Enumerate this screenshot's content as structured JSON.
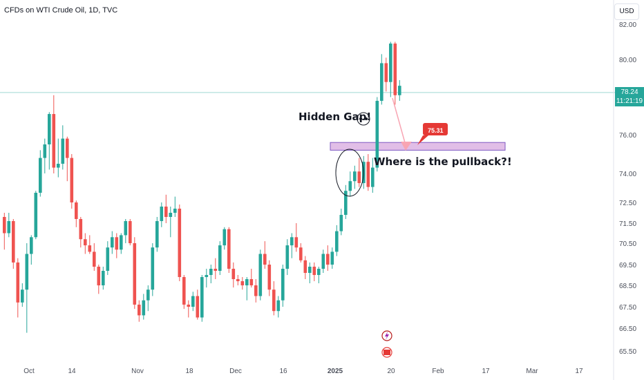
{
  "header": {
    "title": "CFDs on WTI Crude Oil, 1D, TVC",
    "currency": "USD"
  },
  "last_price": {
    "value": "78.24",
    "countdown": "11:21:19"
  },
  "annotations": {
    "hidden_gap": "Hidden Gap!",
    "pullback": "Where is the pullback?!",
    "target_badge": "75.31"
  },
  "colors": {
    "up": "#26a69a",
    "down": "#ef5350",
    "zone_fill": "#e1bee7",
    "zone_border": "#7e57c2",
    "arrow": "#f8a5b3",
    "badge": "#e53935",
    "price_line": "#26a69a"
  },
  "chart_data": {
    "type": "candlestick",
    "title": "CFDs on WTI Crude Oil, 1D, TVC",
    "xlabel": "",
    "ylabel": "",
    "y_ticks": [
      "82.00",
      "80.00",
      "76.00",
      "74.00",
      "72.50",
      "71.50",
      "70.50",
      "69.50",
      "68.50",
      "67.50",
      "66.50",
      "65.50"
    ],
    "x_ticks": [
      "Oct",
      "14",
      "Nov",
      "18",
      "Dec",
      "16",
      "2025",
      "20",
      "Feb",
      "17",
      "Mar",
      "17"
    ],
    "candles": [
      {
        "o": 71.8,
        "h": 72.0,
        "l": 70.2,
        "c": 71.0
      },
      {
        "o": 71.0,
        "h": 72.0,
        "l": 70.8,
        "c": 71.6
      },
      {
        "o": 71.6,
        "h": 71.7,
        "l": 69.3,
        "c": 69.6
      },
      {
        "o": 69.6,
        "h": 69.8,
        "l": 67.0,
        "c": 67.7
      },
      {
        "o": 67.7,
        "h": 68.6,
        "l": 67.5,
        "c": 68.3
      },
      {
        "o": 68.3,
        "h": 70.5,
        "l": 66.3,
        "c": 70.0
      },
      {
        "o": 70.0,
        "h": 70.9,
        "l": 69.5,
        "c": 70.8
      },
      {
        "o": 70.8,
        "h": 73.1,
        "l": 70.7,
        "c": 73.0
      },
      {
        "o": 73.0,
        "h": 75.2,
        "l": 72.8,
        "c": 74.8
      },
      {
        "o": 74.8,
        "h": 75.8,
        "l": 74.0,
        "c": 75.5
      },
      {
        "o": 75.5,
        "h": 77.2,
        "l": 74.2,
        "c": 77.1
      },
      {
        "o": 77.1,
        "h": 78.1,
        "l": 74.0,
        "c": 74.3
      },
      {
        "o": 74.3,
        "h": 75.8,
        "l": 73.8,
        "c": 74.5
      },
      {
        "o": 74.5,
        "h": 76.5,
        "l": 74.2,
        "c": 75.8
      },
      {
        "o": 75.8,
        "h": 75.9,
        "l": 73.6,
        "c": 74.8
      },
      {
        "o": 74.8,
        "h": 75.0,
        "l": 72.2,
        "c": 72.5
      },
      {
        "o": 72.5,
        "h": 72.6,
        "l": 71.3,
        "c": 71.7
      },
      {
        "o": 71.7,
        "h": 71.8,
        "l": 70.3,
        "c": 70.7
      },
      {
        "o": 70.7,
        "h": 71.0,
        "l": 70.0,
        "c": 70.4
      },
      {
        "o": 70.4,
        "h": 70.9,
        "l": 70.0,
        "c": 70.1
      },
      {
        "o": 70.1,
        "h": 70.5,
        "l": 69.2,
        "c": 69.4
      },
      {
        "o": 69.4,
        "h": 69.5,
        "l": 68.1,
        "c": 68.5
      },
      {
        "o": 68.5,
        "h": 69.4,
        "l": 68.3,
        "c": 69.2
      },
      {
        "o": 69.2,
        "h": 70.6,
        "l": 69.0,
        "c": 70.3
      },
      {
        "o": 70.3,
        "h": 71.1,
        "l": 70.0,
        "c": 70.8
      },
      {
        "o": 70.8,
        "h": 71.0,
        "l": 69.8,
        "c": 70.2
      },
      {
        "o": 70.2,
        "h": 71.0,
        "l": 70.0,
        "c": 70.9
      },
      {
        "o": 70.9,
        "h": 71.7,
        "l": 70.5,
        "c": 71.6
      },
      {
        "o": 71.6,
        "h": 71.7,
        "l": 70.4,
        "c": 70.5
      },
      {
        "o": 70.5,
        "h": 70.8,
        "l": 67.4,
        "c": 67.6
      },
      {
        "o": 67.6,
        "h": 67.8,
        "l": 66.8,
        "c": 67.1
      },
      {
        "o": 67.1,
        "h": 68.1,
        "l": 66.9,
        "c": 67.8
      },
      {
        "o": 67.8,
        "h": 68.5,
        "l": 67.3,
        "c": 68.3
      },
      {
        "o": 68.3,
        "h": 70.5,
        "l": 68.0,
        "c": 70.3
      },
      {
        "o": 70.3,
        "h": 71.8,
        "l": 70.1,
        "c": 71.6
      },
      {
        "o": 71.6,
        "h": 72.5,
        "l": 71.3,
        "c": 72.3
      },
      {
        "o": 72.3,
        "h": 72.9,
        "l": 71.5,
        "c": 71.8
      },
      {
        "o": 71.8,
        "h": 72.3,
        "l": 70.8,
        "c": 72.0
      },
      {
        "o": 72.0,
        "h": 72.8,
        "l": 71.8,
        "c": 72.2
      },
      {
        "o": 72.2,
        "h": 72.4,
        "l": 68.7,
        "c": 68.9
      },
      {
        "o": 68.9,
        "h": 69.0,
        "l": 67.4,
        "c": 67.6
      },
      {
        "o": 67.6,
        "h": 67.8,
        "l": 67.0,
        "c": 67.5
      },
      {
        "o": 67.5,
        "h": 68.2,
        "l": 67.3,
        "c": 68.0
      },
      {
        "o": 68.0,
        "h": 68.3,
        "l": 66.9,
        "c": 67.0
      },
      {
        "o": 67.0,
        "h": 69.0,
        "l": 66.8,
        "c": 68.9
      },
      {
        "o": 68.9,
        "h": 69.3,
        "l": 68.4,
        "c": 69.0
      },
      {
        "o": 69.0,
        "h": 69.5,
        "l": 68.6,
        "c": 69.3
      },
      {
        "o": 69.3,
        "h": 69.8,
        "l": 68.8,
        "c": 69.2
      },
      {
        "o": 69.2,
        "h": 70.6,
        "l": 69.0,
        "c": 70.4
      },
      {
        "o": 70.4,
        "h": 71.3,
        "l": 70.2,
        "c": 71.2
      },
      {
        "o": 71.2,
        "h": 71.3,
        "l": 69.1,
        "c": 69.3
      },
      {
        "o": 69.3,
        "h": 69.6,
        "l": 68.4,
        "c": 68.8
      },
      {
        "o": 68.8,
        "h": 69.0,
        "l": 68.5,
        "c": 68.7
      },
      {
        "o": 68.7,
        "h": 68.9,
        "l": 68.3,
        "c": 68.5
      },
      {
        "o": 68.5,
        "h": 68.9,
        "l": 67.8,
        "c": 68.8
      },
      {
        "o": 68.8,
        "h": 69.3,
        "l": 68.4,
        "c": 68.5
      },
      {
        "o": 68.5,
        "h": 68.8,
        "l": 67.7,
        "c": 68.0
      },
      {
        "o": 68.0,
        "h": 70.2,
        "l": 67.8,
        "c": 70.0
      },
      {
        "o": 70.0,
        "h": 70.6,
        "l": 69.3,
        "c": 69.5
      },
      {
        "o": 69.5,
        "h": 69.7,
        "l": 68.0,
        "c": 68.3
      },
      {
        "o": 68.3,
        "h": 68.7,
        "l": 67.1,
        "c": 67.3
      },
      {
        "o": 67.3,
        "h": 68.0,
        "l": 67.0,
        "c": 67.8
      },
      {
        "o": 67.8,
        "h": 69.5,
        "l": 67.5,
        "c": 69.3
      },
      {
        "o": 69.3,
        "h": 70.7,
        "l": 69.0,
        "c": 70.4
      },
      {
        "o": 70.4,
        "h": 71.0,
        "l": 69.8,
        "c": 70.8
      },
      {
        "o": 70.8,
        "h": 71.5,
        "l": 70.1,
        "c": 70.3
      },
      {
        "o": 70.3,
        "h": 70.5,
        "l": 69.6,
        "c": 69.7
      },
      {
        "o": 69.7,
        "h": 69.9,
        "l": 68.8,
        "c": 69.1
      },
      {
        "o": 69.1,
        "h": 69.6,
        "l": 68.6,
        "c": 69.4
      },
      {
        "o": 69.4,
        "h": 69.6,
        "l": 68.7,
        "c": 69.0
      },
      {
        "o": 69.0,
        "h": 69.4,
        "l": 68.6,
        "c": 69.3
      },
      {
        "o": 69.3,
        "h": 70.2,
        "l": 69.1,
        "c": 70.0
      },
      {
        "o": 70.0,
        "h": 70.4,
        "l": 69.2,
        "c": 69.5
      },
      {
        "o": 69.5,
        "h": 70.3,
        "l": 69.3,
        "c": 70.1
      },
      {
        "o": 70.1,
        "h": 71.4,
        "l": 69.9,
        "c": 71.1
      },
      {
        "o": 71.1,
        "h": 72.2,
        "l": 70.9,
        "c": 71.9
      },
      {
        "o": 71.9,
        "h": 73.4,
        "l": 71.7,
        "c": 73.1
      },
      {
        "o": 73.1,
        "h": 74.1,
        "l": 72.8,
        "c": 73.6
      },
      {
        "o": 73.6,
        "h": 74.4,
        "l": 73.2,
        "c": 74.1
      },
      {
        "o": 74.1,
        "h": 74.8,
        "l": 73.3,
        "c": 73.5
      },
      {
        "o": 73.5,
        "h": 74.9,
        "l": 73.2,
        "c": 74.6
      },
      {
        "o": 74.6,
        "h": 75.0,
        "l": 73.1,
        "c": 73.3
      },
      {
        "o": 73.3,
        "h": 74.8,
        "l": 73.0,
        "c": 74.3
      },
      {
        "o": 74.3,
        "h": 78.0,
        "l": 74.1,
        "c": 77.8
      },
      {
        "o": 77.8,
        "h": 80.3,
        "l": 77.6,
        "c": 79.8
      },
      {
        "o": 79.8,
        "h": 80.1,
        "l": 78.3,
        "c": 78.8
      },
      {
        "o": 78.8,
        "h": 81.0,
        "l": 78.0,
        "c": 80.9
      },
      {
        "o": 80.9,
        "h": 81.0,
        "l": 77.6,
        "c": 78.1
      },
      {
        "o": 78.1,
        "h": 78.9,
        "l": 77.8,
        "c": 78.6
      }
    ],
    "horizontal_zone": {
      "low": 75.2,
      "high": 75.6
    },
    "price_line": 78.24
  }
}
